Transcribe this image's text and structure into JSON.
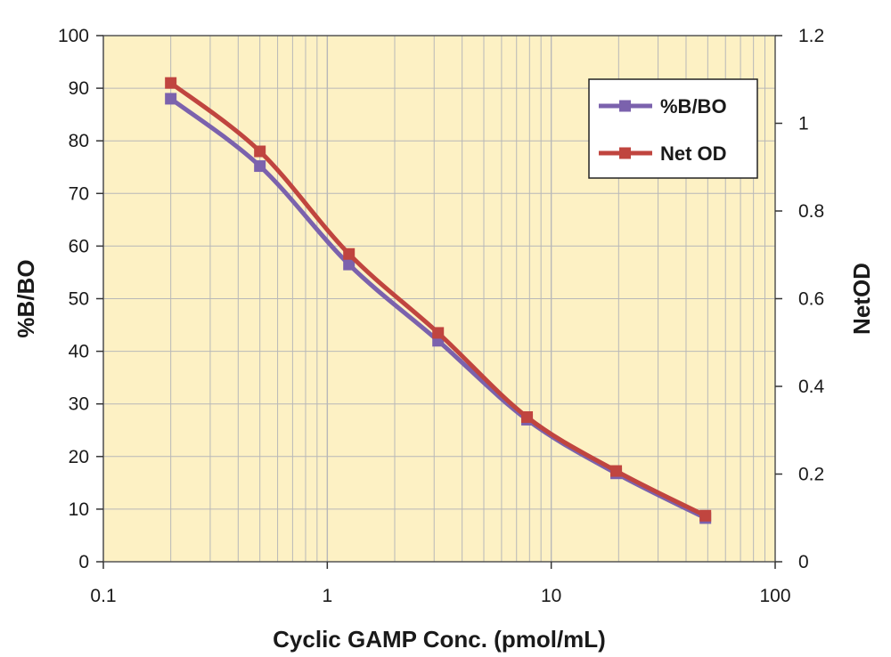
{
  "chart_data": {
    "type": "line",
    "xlabel": "Cyclic GAMP Conc. (pmol/mL)",
    "ylabel": "%B/BO",
    "y2label": "NetOD",
    "xscale": "log",
    "xlim": [
      0.1,
      100
    ],
    "ylim": [
      0,
      100
    ],
    "y2lim": [
      0,
      1.2
    ],
    "x_ticks": [
      "0.1",
      "1",
      "10",
      "100"
    ],
    "y_ticks": [
      "0",
      "10",
      "20",
      "30",
      "40",
      "50",
      "60",
      "70",
      "80",
      "90",
      "100"
    ],
    "y2_ticks": [
      "0",
      "0.2",
      "0.4",
      "0.6",
      "0.8",
      "1",
      "1.2"
    ],
    "grid": true,
    "legend_position": "top-right",
    "colors": {
      "plot_bg": "#fdf1c4",
      "grid": "#b8b8b8",
      "frame": "#555555"
    },
    "x": [
      0.2,
      0.5,
      1.25,
      3.125,
      7.8,
      19.5,
      48.8
    ],
    "series": [
      {
        "name": "%B/BO",
        "axis": "left",
        "color": "#7b62ad",
        "marker": "square",
        "values": [
          88,
          75.2,
          56.5,
          42,
          27,
          16.8,
          8.3
        ]
      },
      {
        "name": "Net OD",
        "axis": "right",
        "color": "#c0453f",
        "marker": "square",
        "values": [
          1.092,
          0.936,
          0.702,
          0.522,
          0.33,
          0.207,
          0.105
        ]
      }
    ]
  }
}
